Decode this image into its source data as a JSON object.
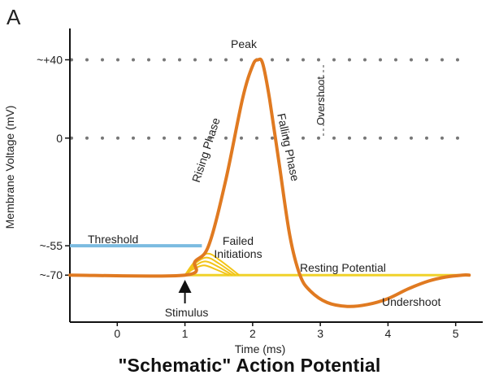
{
  "panel_label": "A",
  "colors": {
    "trace": "#e07a21",
    "failed": "#f2c418",
    "resting": "#f0d22a",
    "threshold": "#7bbbe0",
    "grid": "#777777",
    "axis": "#111111"
  },
  "chart_data": {
    "type": "line",
    "title": "\"Schematic\" Action Potential",
    "xlabel": "Time (ms)",
    "ylabel": "Membrane Voltage (mV)",
    "xlim": [
      -0.7,
      5.4
    ],
    "ylim": [
      -94,
      56
    ],
    "x_ticks": [
      0,
      1,
      2,
      3,
      4,
      5
    ],
    "x_tick_labels": [
      "0",
      "1",
      "2",
      "3",
      "4",
      "5"
    ],
    "y_ticks": [
      40,
      0,
      -55,
      -70
    ],
    "y_tick_labels": [
      "~+40",
      "0",
      "~-55",
      "~-70"
    ],
    "dotted_reference_lines": [
      40,
      0
    ],
    "series": [
      {
        "role": "action-potential",
        "x": [
          -0.7,
          1.0,
          1.15,
          1.35,
          1.6,
          1.85,
          2.0,
          2.08,
          2.15,
          2.25,
          2.4,
          2.55,
          2.7,
          2.85,
          3.1,
          3.4,
          3.7,
          4.0,
          4.3,
          4.6,
          4.85,
          5.1,
          5.2
        ],
        "y": [
          -70,
          -70,
          -63,
          -55,
          -22,
          20,
          37,
          40,
          38,
          20,
          -15,
          -50,
          -70,
          -78,
          -84,
          -86,
          -85,
          -82,
          -77,
          -73,
          -71,
          -70,
          -70
        ]
      }
    ],
    "threshold": {
      "x": [
        -0.7,
        1.25
      ],
      "y": -55
    },
    "resting_potential": {
      "x": [
        1.0,
        5.1
      ],
      "y": -70
    },
    "failed_initiations": [
      {
        "x": [
          1.0,
          1.12,
          1.28,
          1.45,
          1.65
        ],
        "y": [
          -70,
          -67,
          -65,
          -67,
          -70
        ]
      },
      {
        "x": [
          1.0,
          1.14,
          1.3,
          1.48,
          1.7
        ],
        "y": [
          -70,
          -65.5,
          -63,
          -65.5,
          -70
        ]
      },
      {
        "x": [
          1.0,
          1.15,
          1.32,
          1.5,
          1.75
        ],
        "y": [
          -70,
          -64,
          -61,
          -64,
          -70
        ]
      },
      {
        "x": [
          1.0,
          1.16,
          1.34,
          1.52,
          1.8
        ],
        "y": [
          -70,
          -62.5,
          -59,
          -62.5,
          -70
        ]
      }
    ],
    "annotations": {
      "peak": "Peak",
      "rising": "Rising Phase",
      "falling": "Falling Phase",
      "overshoot": "Overshoot",
      "threshold": "Threshold",
      "failed": [
        "Failed",
        "Initiations"
      ],
      "resting": "Resting Potential",
      "stimulus": "Stimulus",
      "undershoot": "Undershoot"
    }
  }
}
